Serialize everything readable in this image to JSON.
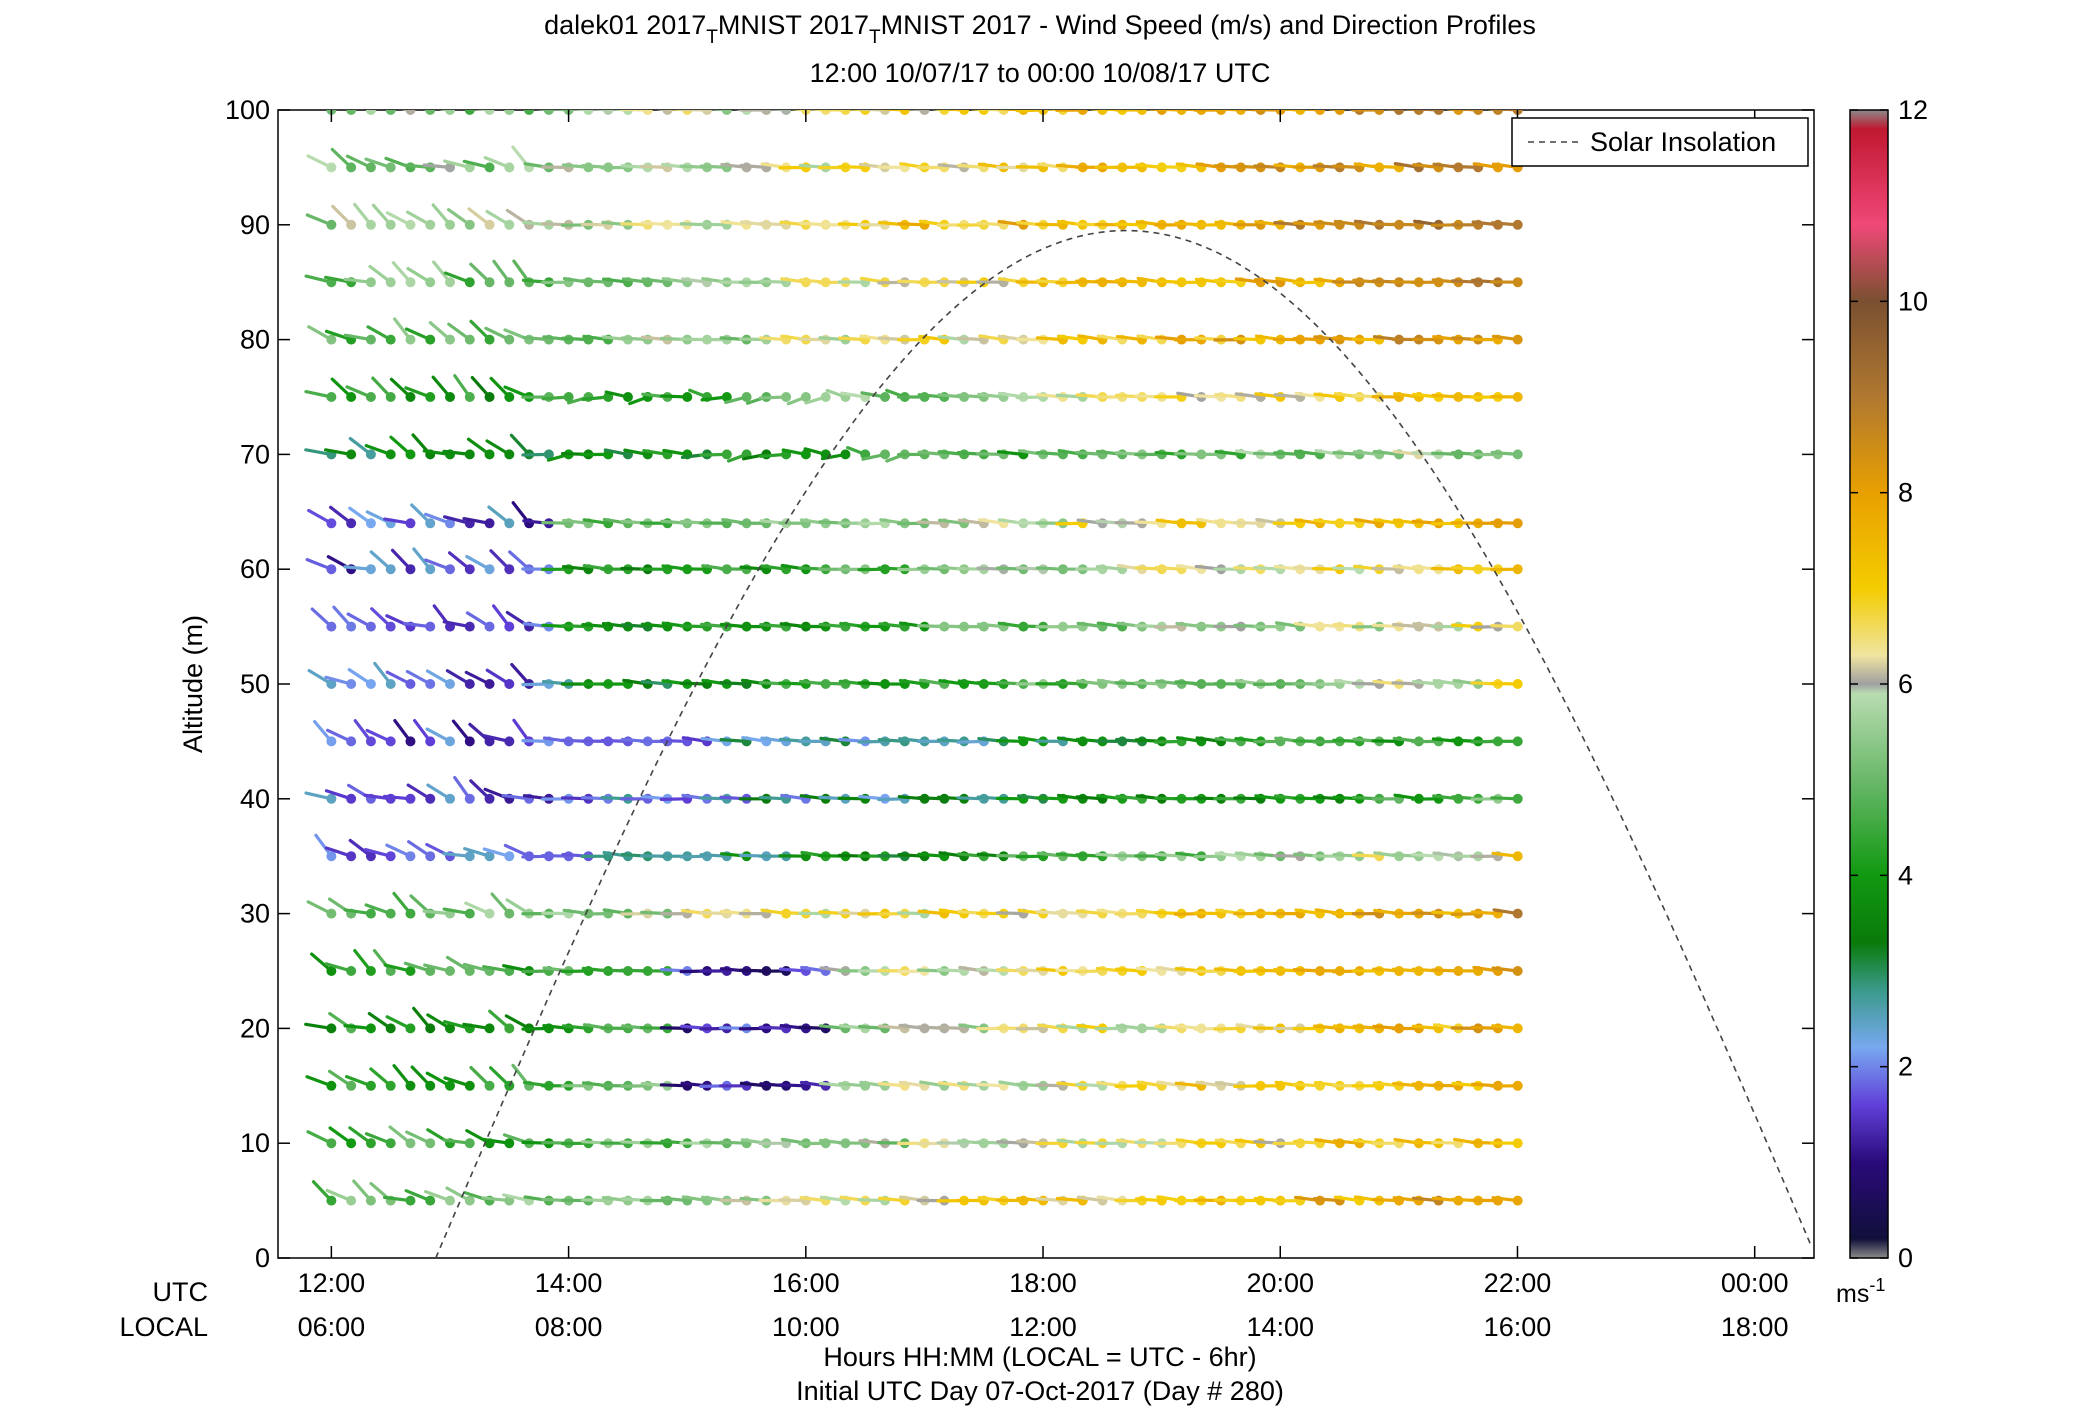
{
  "chart_data": {
    "type": "scatter",
    "title": "dalek01 2017",
    "title_sub1": "T",
    "title_mid": "MNIST 2017",
    "title_sub2": "T",
    "title_rest": "MNIST 2017 - Wind Speed (m/s) and Direction Profiles",
    "subtitle": "12:00 10/07/17 to 00:00 10/08/17  UTC",
    "ylabel": "Altitude (m)",
    "xlabel": "Hours HH:MM  (LOCAL = UTC - 6hr)",
    "xlabel2": "Initial UTC Day 07-Oct-2017 (Day # 280)",
    "x_row_labels": [
      "UTC",
      "LOCAL"
    ],
    "x_ticks_utc": [
      "12:00",
      "14:00",
      "16:00",
      "18:00",
      "20:00",
      "22:00",
      "00:00"
    ],
    "x_ticks_local": [
      "06:00",
      "08:00",
      "10:00",
      "12:00",
      "14:00",
      "16:00",
      "18:00"
    ],
    "x_tick_hours": [
      12,
      14,
      16,
      18,
      20,
      22,
      24
    ],
    "xlim": [
      11.55,
      24.5
    ],
    "y_ticks": [
      "0",
      "10",
      "20",
      "30",
      "40",
      "50",
      "60",
      "70",
      "80",
      "90",
      "100"
    ],
    "ylim": [
      0,
      100
    ],
    "altitudes": [
      5,
      10,
      15,
      20,
      25,
      30,
      35,
      40,
      45,
      50,
      55,
      60,
      64,
      70,
      75,
      80,
      85,
      90,
      95,
      100
    ],
    "time_start_hour": 12.0,
    "time_step_hours": 0.1667,
    "time_count": 61,
    "legend": {
      "entry": "Solar Insolation",
      "position": "top-right"
    },
    "solar_insolation": {
      "type": "curve",
      "rise_hour": 12.88,
      "set_hour": 24.52,
      "peak_hour": 18.95,
      "peak_altitude": 89.5
    },
    "colorbar": {
      "ticks": [
        "0",
        "2",
        "4",
        "6",
        "8",
        "10",
        "12"
      ],
      "range": [
        0,
        12
      ],
      "unit_label": "ms",
      "unit_exp": "-1",
      "stops": [
        {
          "v": 0.0,
          "c": "#8a8a8a"
        },
        {
          "v": 0.2,
          "c": "#10103a"
        },
        {
          "v": 1.0,
          "c": "#2a0a7a"
        },
        {
          "v": 1.6,
          "c": "#6040d8"
        },
        {
          "v": 2.2,
          "c": "#78a8f0"
        },
        {
          "v": 2.8,
          "c": "#3a9a8a"
        },
        {
          "v": 3.3,
          "c": "#0a7a0a"
        },
        {
          "v": 4.0,
          "c": "#119911"
        },
        {
          "v": 5.0,
          "c": "#6ab86a"
        },
        {
          "v": 5.9,
          "c": "#b8dcb0"
        },
        {
          "v": 6.0,
          "c": "#a0a0a0"
        },
        {
          "v": 6.3,
          "c": "#f0e4a0"
        },
        {
          "v": 7.0,
          "c": "#f4cc00"
        },
        {
          "v": 8.0,
          "c": "#e8a000"
        },
        {
          "v": 9.0,
          "c": "#b07830"
        },
        {
          "v": 10.0,
          "c": "#7a5030"
        },
        {
          "v": 10.8,
          "c": "#f04878"
        },
        {
          "v": 11.8,
          "c": "#c01830"
        },
        {
          "v": 12.0,
          "c": "#8a8a8a"
        }
      ]
    },
    "wind_field": {
      "description_units": "speed in m/s, direction in degrees",
      "speed_base": [
        5.2,
        4.5,
        4.4,
        4.0,
        4.3,
        5.3,
        2.0,
        1.8,
        1.6,
        3.2,
        3.4,
        3.4,
        4.2,
        3.2,
        4.0,
        4.8,
        5.0,
        5.6,
        5.2,
        5.3
      ],
      "speed_gain_per_hour": [
        0.35,
        0.35,
        0.4,
        0.45,
        0.45,
        0.35,
        0.55,
        0.35,
        0.38,
        0.36,
        0.35,
        0.45,
        0.42,
        0.3,
        0.4,
        0.45,
        0.4,
        0.4,
        0.42,
        0.42
      ],
      "direction_early_deg": 120,
      "direction_late_deg": 80
    }
  }
}
